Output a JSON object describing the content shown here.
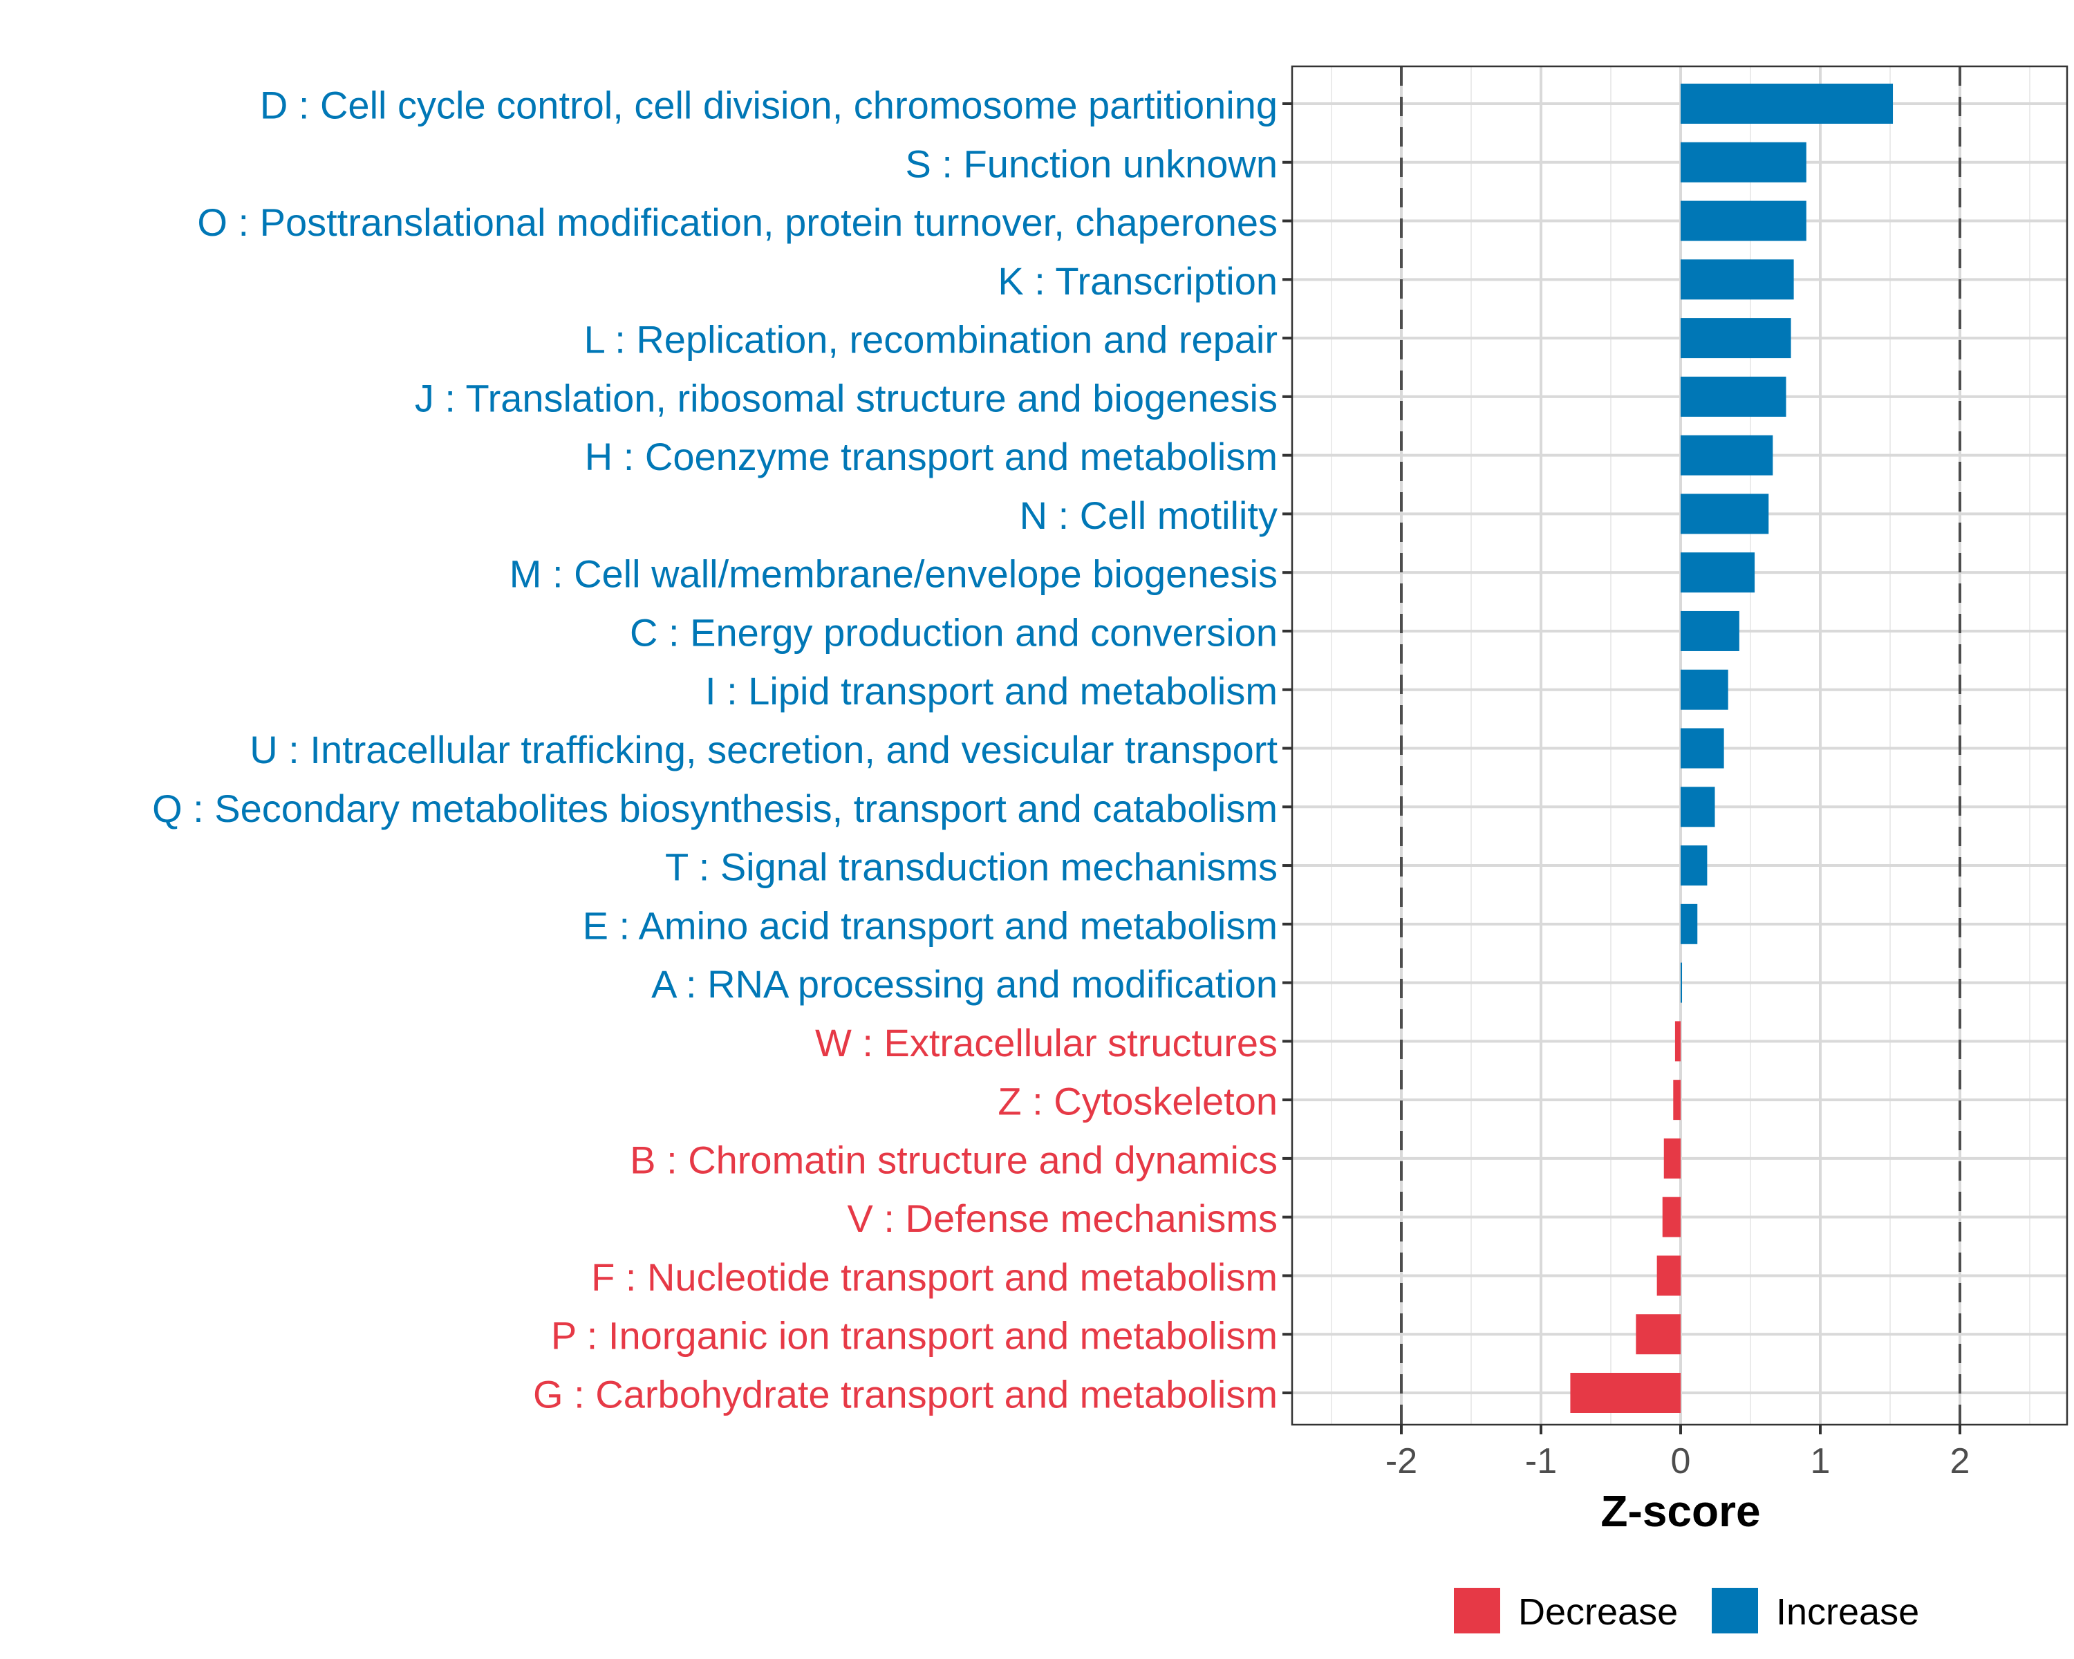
{
  "chart_data": {
    "type": "bar",
    "orientation": "horizontal",
    "title": "",
    "xlabel": "Z-score",
    "ylabel": "",
    "xlim": [
      -2.8,
      2.75
    ],
    "xticks": [
      -2,
      -1,
      0,
      1,
      2
    ],
    "xtick_labels": [
      "-2",
      "-1",
      "0",
      "1",
      "2"
    ],
    "reference_lines": [
      -2,
      2
    ],
    "grid": true,
    "legend_position": "bottom",
    "colors": {
      "Decrease": "#e63946",
      "Increase": "#0077b6"
    },
    "legend": [
      {
        "label": "Decrease",
        "color": "#e63946"
      },
      {
        "label": "Increase",
        "color": "#0077b6"
      }
    ],
    "categories": [
      "D : Cell cycle control, cell division, chromosome partitioning",
      "S : Function unknown",
      "O : Posttranslational modification, protein turnover, chaperones",
      "K : Transcription",
      "L : Replication, recombination and repair",
      "J : Translation, ribosomal structure and biogenesis",
      "H : Coenzyme transport and metabolism",
      "N : Cell motility",
      "M : Cell wall/membrane/envelope biogenesis",
      "C : Energy production and conversion",
      "I : Lipid transport and metabolism",
      "U : Intracellular trafficking, secretion, and vesicular transport",
      "Q : Secondary metabolites biosynthesis, transport and catabolism",
      "T : Signal transduction mechanisms",
      "E : Amino acid transport and metabolism",
      "A : RNA processing and modification",
      "W : Extracellular structures",
      "Z : Cytoskeleton",
      "B : Chromatin structure and dynamics",
      "V : Defense mechanisms",
      "F : Nucleotide transport and metabolism",
      "P : Inorganic ion transport and metabolism",
      "G : Carbohydrate transport and metabolism"
    ],
    "values": [
      1.52,
      0.9,
      0.9,
      0.81,
      0.79,
      0.755,
      0.66,
      0.63,
      0.53,
      0.42,
      0.34,
      0.31,
      0.245,
      0.19,
      0.12,
      0.01,
      -0.04,
      -0.053,
      -0.12,
      -0.13,
      -0.17,
      -0.32,
      -0.79
    ],
    "groups": [
      "Increase",
      "Increase",
      "Increase",
      "Increase",
      "Increase",
      "Increase",
      "Increase",
      "Increase",
      "Increase",
      "Increase",
      "Increase",
      "Increase",
      "Increase",
      "Increase",
      "Increase",
      "Increase",
      "Decrease",
      "Decrease",
      "Decrease",
      "Decrease",
      "Decrease",
      "Decrease",
      "Decrease"
    ]
  }
}
